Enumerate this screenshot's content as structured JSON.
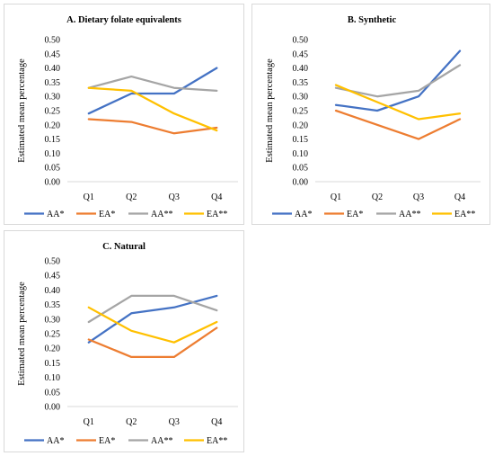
{
  "chart_data": [
    {
      "type": "line",
      "title": "A. Dietary folate equivalents",
      "xlabel": "",
      "ylabel": "Estimated mean percentage",
      "categories": [
        "Q1",
        "Q2",
        "Q3",
        "Q4"
      ],
      "ylim": [
        0,
        0.5
      ],
      "yticks": [
        "0.00",
        "0.05",
        "0.10",
        "0.15",
        "0.20",
        "0.25",
        "0.30",
        "0.35",
        "0.40",
        "0.45",
        "0.50"
      ],
      "grid": false,
      "legend": "bottom",
      "series": [
        {
          "name": "AA*",
          "color": "#4472C4",
          "values": [
            0.24,
            0.31,
            0.31,
            0.4
          ]
        },
        {
          "name": "EA*",
          "color": "#ED7D31",
          "values": [
            0.22,
            0.21,
            0.17,
            0.19
          ]
        },
        {
          "name": "AA**",
          "color": "#A5A5A5",
          "values": [
            0.33,
            0.37,
            0.33,
            0.32
          ]
        },
        {
          "name": "EA**",
          "color": "#FFC000",
          "values": [
            0.33,
            0.32,
            0.24,
            0.18
          ]
        }
      ]
    },
    {
      "type": "line",
      "title": "B. Synthetic",
      "xlabel": "",
      "ylabel": "Estimated mean percentage",
      "categories": [
        "Q1",
        "Q2",
        "Q3",
        "Q4"
      ],
      "ylim": [
        0,
        0.5
      ],
      "yticks": [
        "0.00",
        "0.05",
        "0.10",
        "0.15",
        "0.20",
        "0.25",
        "0.30",
        "0.35",
        "0.40",
        "0.45",
        "0.50"
      ],
      "grid": false,
      "legend": "bottom",
      "series": [
        {
          "name": "AA*",
          "color": "#4472C4",
          "values": [
            0.27,
            0.25,
            0.3,
            0.46
          ]
        },
        {
          "name": "EA*",
          "color": "#ED7D31",
          "values": [
            0.25,
            0.2,
            0.15,
            0.22
          ]
        },
        {
          "name": "AA**",
          "color": "#A5A5A5",
          "values": [
            0.33,
            0.3,
            0.32,
            0.41
          ]
        },
        {
          "name": "EA**",
          "color": "#FFC000",
          "values": [
            0.34,
            0.28,
            0.22,
            0.24
          ]
        }
      ]
    },
    {
      "type": "line",
      "title": "C. Natural",
      "xlabel": "",
      "ylabel": "Estimated mean percentage",
      "categories": [
        "Q1",
        "Q2",
        "Q3",
        "Q4"
      ],
      "ylim": [
        0,
        0.5
      ],
      "yticks": [
        "0.00",
        "0.05",
        "0.10",
        "0.15",
        "0.20",
        "0.25",
        "0.30",
        "0.35",
        "0.40",
        "0.45",
        "0.50"
      ],
      "grid": false,
      "legend": "bottom",
      "series": [
        {
          "name": "AA*",
          "color": "#4472C4",
          "values": [
            0.22,
            0.32,
            0.34,
            0.38
          ]
        },
        {
          "name": "EA*",
          "color": "#ED7D31",
          "values": [
            0.23,
            0.17,
            0.17,
            0.27
          ]
        },
        {
          "name": "AA**",
          "color": "#A5A5A5",
          "values": [
            0.29,
            0.38,
            0.38,
            0.33
          ]
        },
        {
          "name": "EA**",
          "color": "#FFC000",
          "values": [
            0.34,
            0.26,
            0.22,
            0.29
          ]
        }
      ]
    }
  ]
}
